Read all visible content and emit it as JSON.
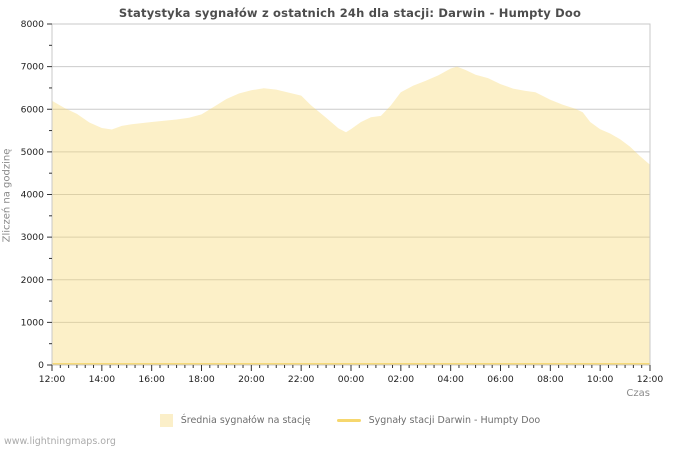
{
  "page": {
    "title": "Statystyka sygnałów z ostatnich 24h dla stacji: Darwin - Humpty Doo",
    "watermark": "www.lightningmaps.org"
  },
  "chart_data": {
    "type": "area",
    "title": "Statystyka sygnałów z ostatnich 24h dla stacji: Darwin - Humpty Doo",
    "xlabel": "Czas",
    "ylabel": "Zliczeń na godzinę",
    "xlim": [
      0,
      24
    ],
    "ylim": [
      0,
      8000
    ],
    "grid": true,
    "legend_position": "bottom",
    "colors": {
      "area_fill": "rgba(246,215,110,0.38)",
      "area_fill_flat": "#fbefc9",
      "line": "#f6d76e",
      "gridline": "#cccccc",
      "plot_border": "#c9c9c9",
      "tick": "#333333",
      "tick_label": "#222222"
    },
    "y_ticks": [
      {
        "v": 0,
        "label": "0"
      },
      {
        "v": 1000,
        "label": "1000"
      },
      {
        "v": 2000,
        "label": "2000"
      },
      {
        "v": 3000,
        "label": "3000"
      },
      {
        "v": 4000,
        "label": "4000"
      },
      {
        "v": 5000,
        "label": "5000"
      },
      {
        "v": 6000,
        "label": "6000"
      },
      {
        "v": 7000,
        "label": "7000"
      },
      {
        "v": 8000,
        "label": "8000"
      }
    ],
    "y_minor_step": 500,
    "x_ticks": [
      {
        "t": 0,
        "label": "12:00"
      },
      {
        "t": 2,
        "label": "14:00"
      },
      {
        "t": 4,
        "label": "16:00"
      },
      {
        "t": 6,
        "label": "18:00"
      },
      {
        "t": 8,
        "label": "20:00"
      },
      {
        "t": 10,
        "label": "22:00"
      },
      {
        "t": 12,
        "label": "00:00"
      },
      {
        "t": 14,
        "label": "02:00"
      },
      {
        "t": 16,
        "label": "04:00"
      },
      {
        "t": 18,
        "label": "06:00"
      },
      {
        "t": 20,
        "label": "08:00"
      },
      {
        "t": 22,
        "label": "10:00"
      },
      {
        "t": 24,
        "label": "12:00"
      }
    ],
    "x_minor_step_hours": 0.33333,
    "series": [
      {
        "name": "Średnia sygnałów na stację",
        "type": "area",
        "points": [
          [
            0,
            6200
          ],
          [
            0.5,
            6030
          ],
          [
            1,
            5890
          ],
          [
            1.5,
            5690
          ],
          [
            2,
            5560
          ],
          [
            2.4,
            5525
          ],
          [
            2.8,
            5610
          ],
          [
            3.2,
            5650
          ],
          [
            4,
            5700
          ],
          [
            4.5,
            5730
          ],
          [
            5,
            5760
          ],
          [
            5.5,
            5800
          ],
          [
            6,
            5880
          ],
          [
            6.5,
            6060
          ],
          [
            7,
            6240
          ],
          [
            7.5,
            6370
          ],
          [
            8,
            6445
          ],
          [
            8.5,
            6495
          ],
          [
            9,
            6460
          ],
          [
            9.5,
            6390
          ],
          [
            10,
            6320
          ],
          [
            10.4,
            6090
          ],
          [
            11,
            5800
          ],
          [
            11.5,
            5550
          ],
          [
            11.8,
            5460
          ],
          [
            12,
            5535
          ],
          [
            12.4,
            5700
          ],
          [
            12.8,
            5810
          ],
          [
            13.2,
            5845
          ],
          [
            13.6,
            6090
          ],
          [
            14,
            6400
          ],
          [
            14.5,
            6555
          ],
          [
            15,
            6670
          ],
          [
            15.5,
            6795
          ],
          [
            16,
            6955
          ],
          [
            16.25,
            7000
          ],
          [
            16.6,
            6920
          ],
          [
            17,
            6810
          ],
          [
            17.5,
            6730
          ],
          [
            18,
            6590
          ],
          [
            18.5,
            6485
          ],
          [
            19,
            6430
          ],
          [
            19.4,
            6400
          ],
          [
            19.7,
            6310
          ],
          [
            20,
            6225
          ],
          [
            20.5,
            6105
          ],
          [
            21,
            6010
          ],
          [
            21.3,
            5930
          ],
          [
            21.6,
            5700
          ],
          [
            22,
            5530
          ],
          [
            22.4,
            5430
          ],
          [
            22.8,
            5295
          ],
          [
            23.2,
            5120
          ],
          [
            23.6,
            4900
          ],
          [
            24,
            4700
          ]
        ]
      },
      {
        "name": "Sygnały stacji Darwin - Humpty Doo",
        "type": "line",
        "points": [
          [
            0,
            20
          ],
          [
            24,
            20
          ]
        ]
      }
    ]
  }
}
